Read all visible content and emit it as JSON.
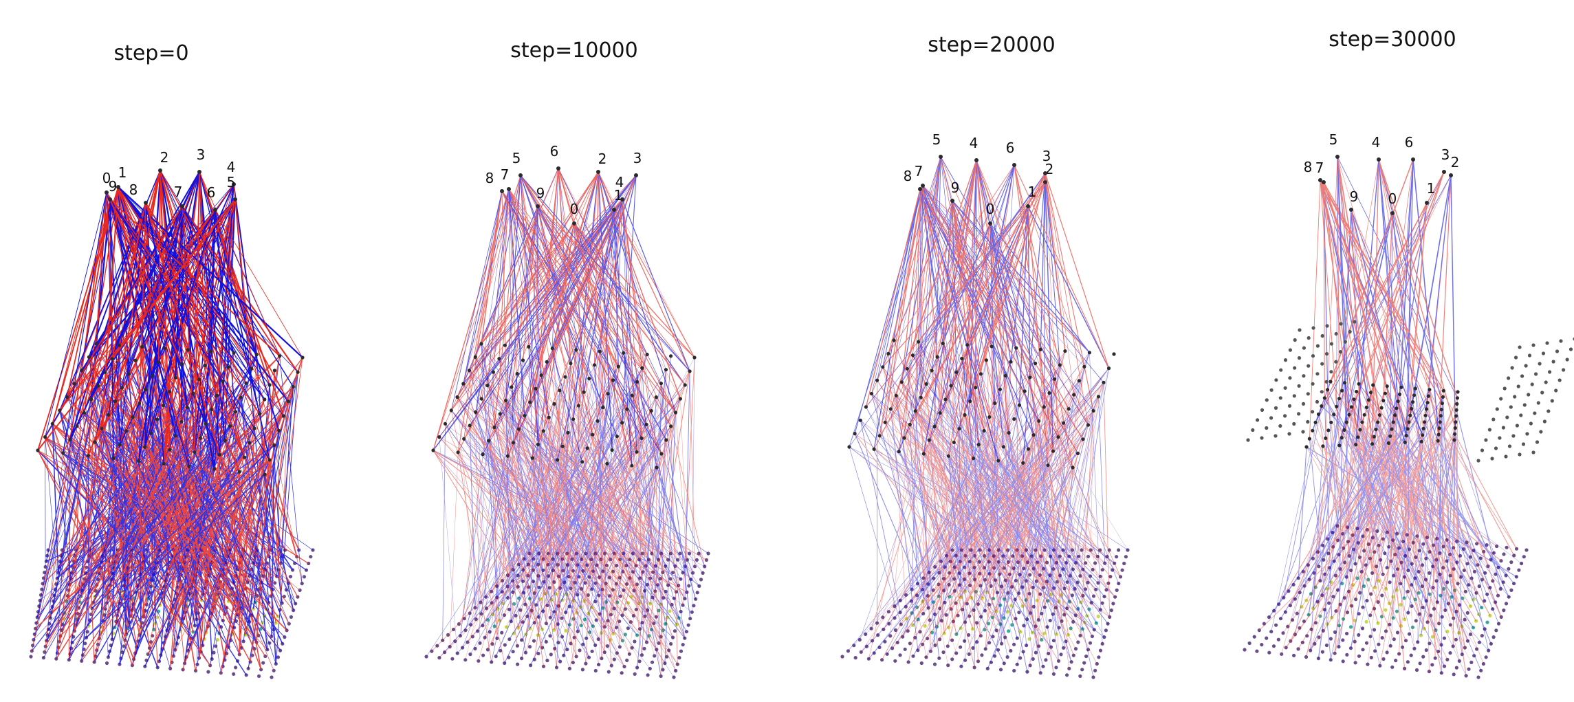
{
  "figure": {
    "panels": [
      {
        "title": "step=0"
      },
      {
        "title": "step=10000"
      },
      {
        "title": "step=20000"
      },
      {
        "title": "step=30000"
      }
    ],
    "output_labels": [
      "0",
      "1",
      "2",
      "3",
      "4",
      "5",
      "6",
      "7",
      "8",
      "9"
    ],
    "colors": {
      "positive_edge": "#e8281e",
      "negative_edge": "#1010e0",
      "node": "#2b2b2b",
      "input_base": "#6a4c8c",
      "input_active": "#c8d84a",
      "input_mid": "#3aa89a",
      "background": "#ffffff"
    }
  }
}
